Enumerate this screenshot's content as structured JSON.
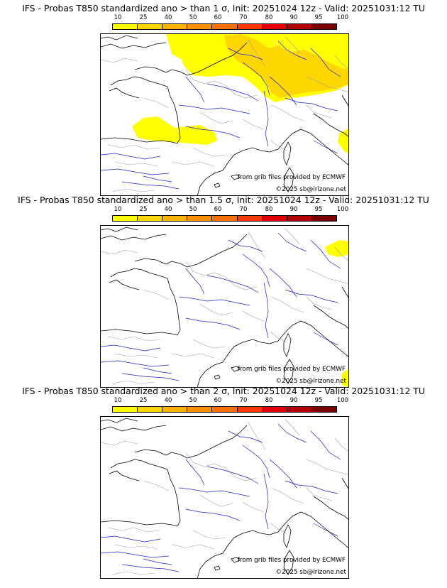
{
  "panels": [
    {
      "title": "IFS - Probas T850  standardized ano > than 1 σ, Init: 20251024 12z - Valid: 20251031:12 TU",
      "credit_line_1": "from grib files provided by ECMWF",
      "credit_line_2": "©2025 sb@irizone.net",
      "coverage": "wide"
    },
    {
      "title": "IFS - Probas T850  standardized ano > than 1.5 σ, Init: 20251024 12z - Valid: 20251031:12 TU",
      "credit_line_1": "from grib files provided by ECMWF",
      "credit_line_2": "©2025 sb@irizone.net",
      "coverage": "small"
    },
    {
      "title": "IFS - Probas T850  standardized ano > than 2 σ, Init: 20251024 12z - Valid: 20251031:12 TU",
      "credit_line_1": "from grib files provided by ECMWF",
      "credit_line_2": "©2025 sb@irizone.net",
      "coverage": "none"
    }
  ],
  "scale": {
    "labels": [
      "10",
      "25",
      "40",
      "50",
      "60",
      "70",
      "80",
      "90",
      "95",
      "100"
    ],
    "colors": [
      "#ffff00",
      "#ffd400",
      "#ffb000",
      "#ff9000",
      "#ff7000",
      "#ff3a00",
      "#e00000",
      "#b00000",
      "#7a0000"
    ]
  },
  "colors": {
    "coast": "#000000",
    "river": "#1f1fd0",
    "border": "#a0a0a0",
    "prob_low": "#ffff00",
    "prob_mid": "#ffd700"
  }
}
